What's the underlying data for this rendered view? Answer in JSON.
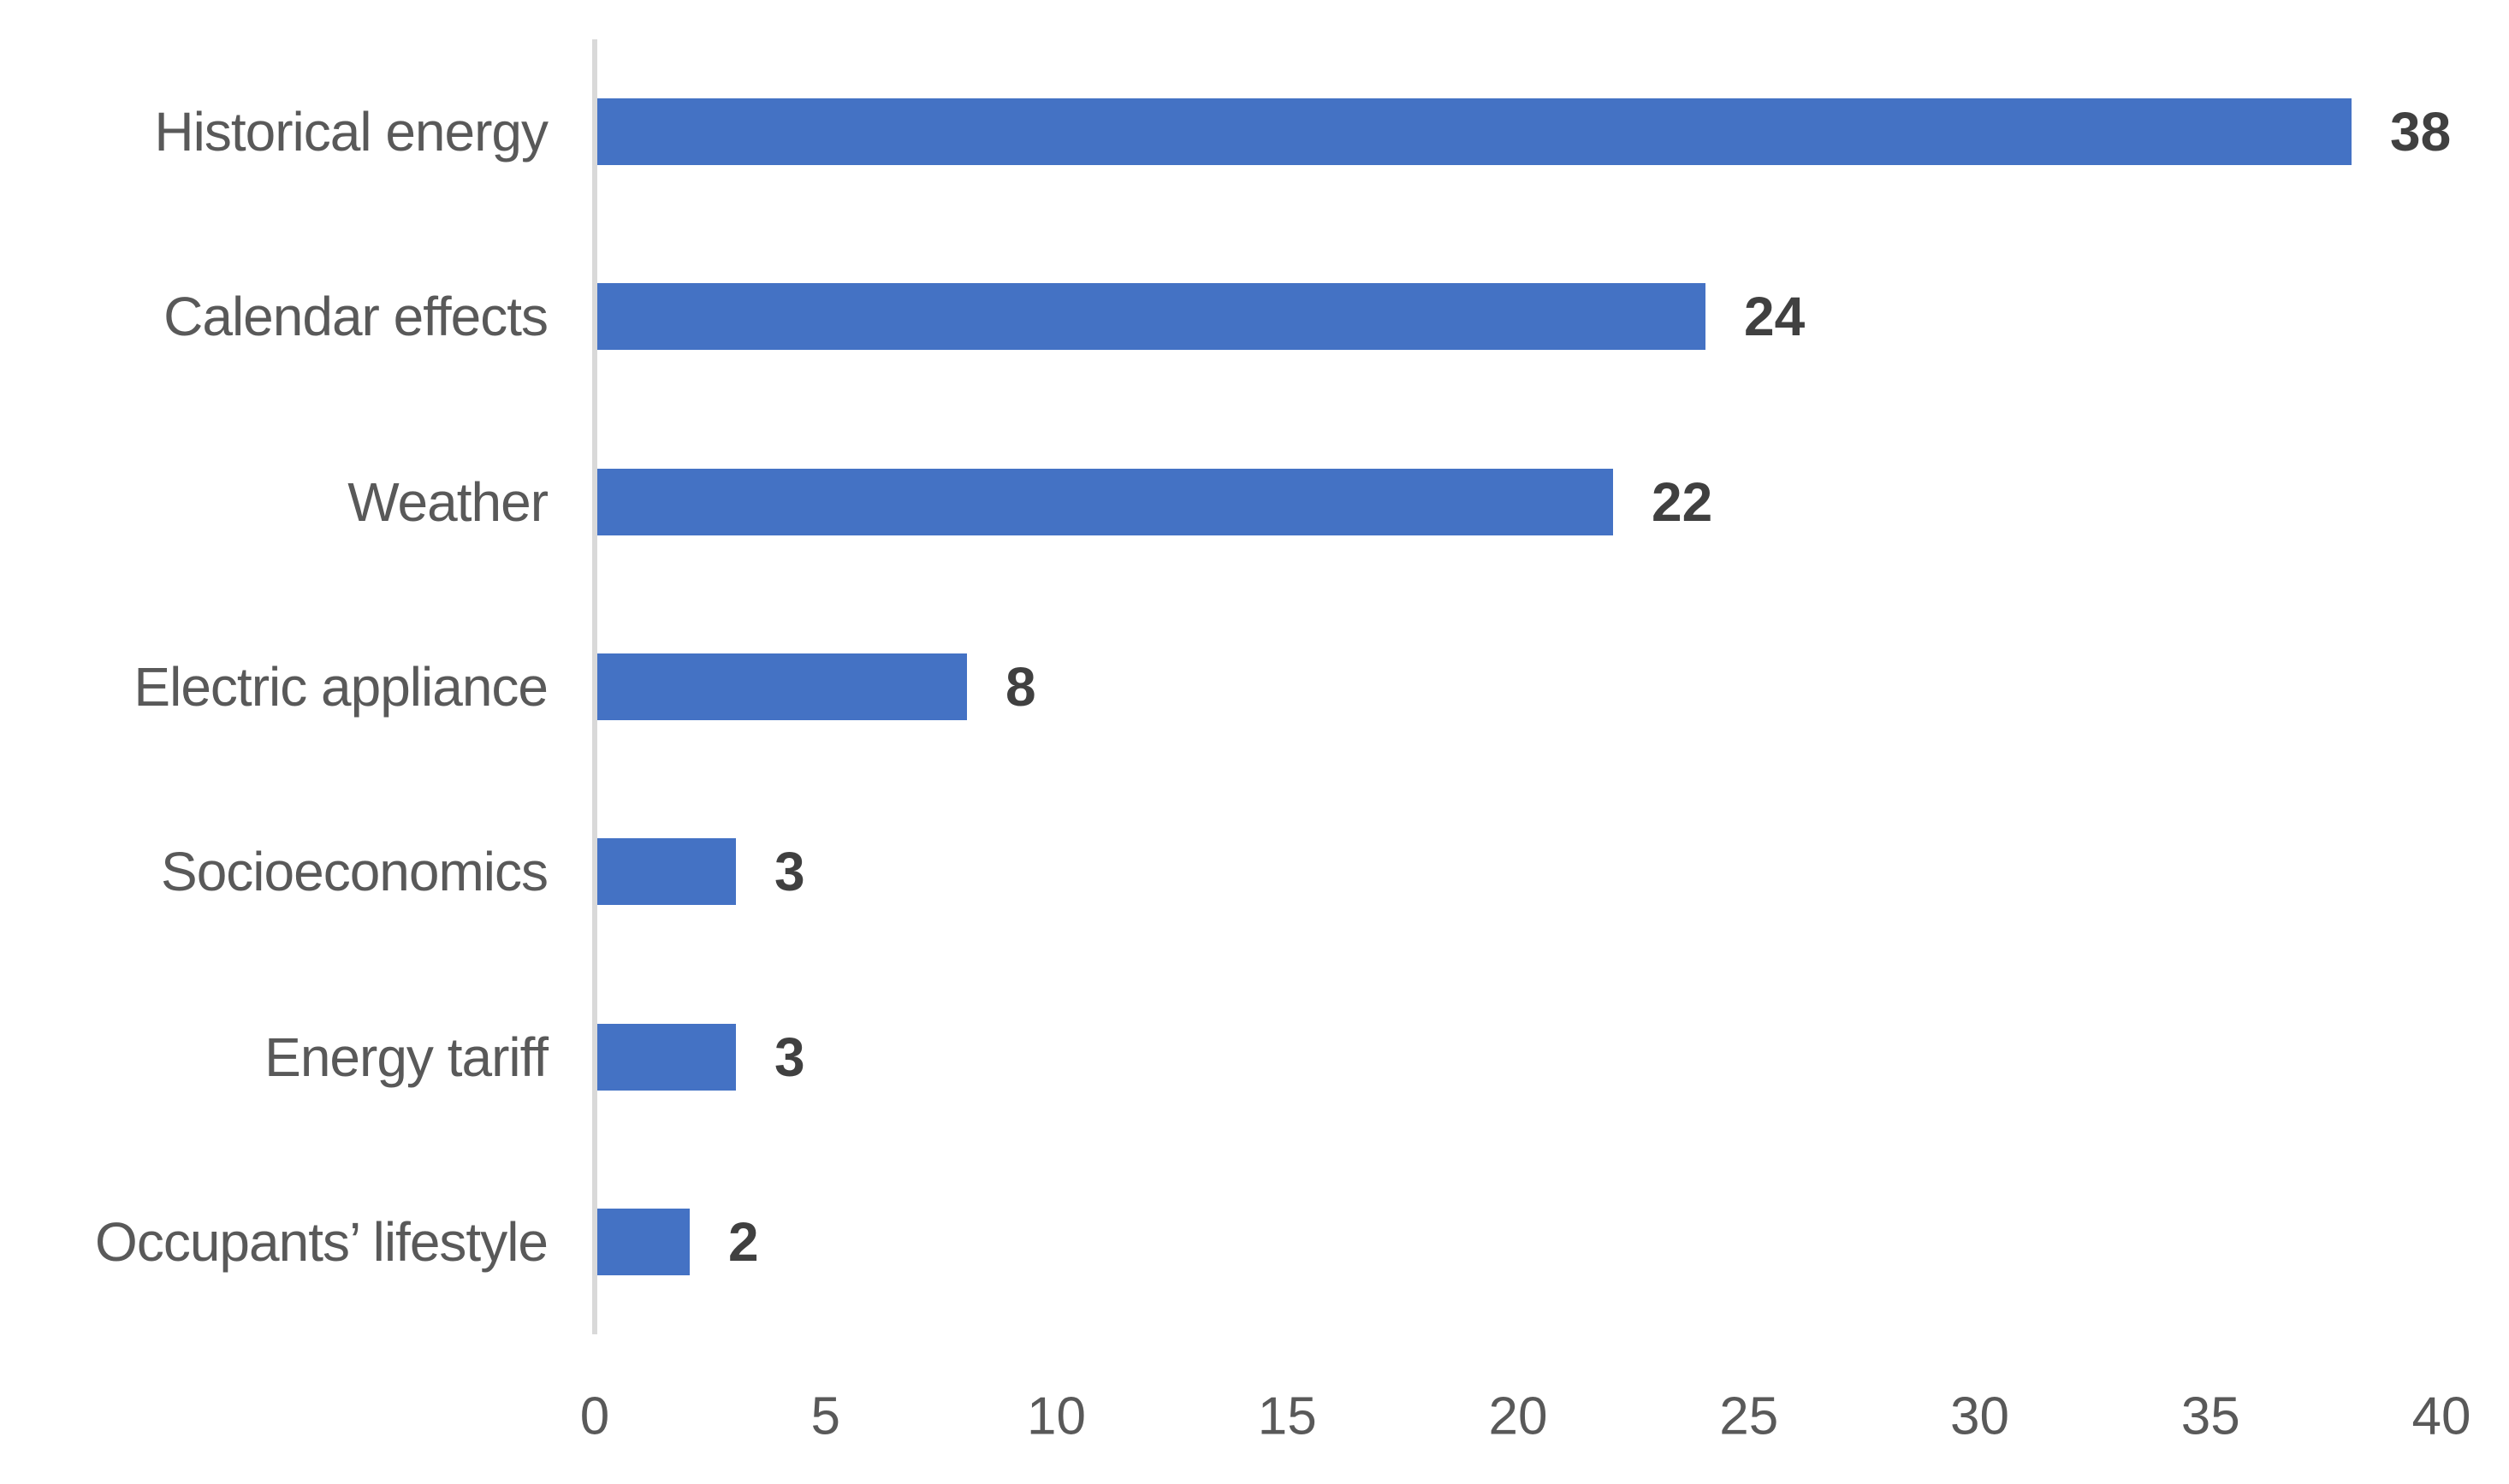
{
  "chart_data": {
    "type": "bar",
    "orientation": "horizontal",
    "title": "",
    "xlabel": "",
    "ylabel": "",
    "categories": [
      "Historical energy",
      "Calendar effects",
      "Weather",
      "Electric appliance",
      "Socioeconomics",
      "Energy tariff",
      "Occupants’ lifestyle"
    ],
    "values": [
      38,
      24,
      22,
      8,
      3,
      3,
      2
    ],
    "data_labels": [
      "38",
      "24",
      "22",
      "8",
      "3",
      "3",
      "2"
    ],
    "xlim": [
      0,
      40
    ],
    "x_ticks": [
      "0",
      "5",
      "10",
      "15",
      "20",
      "25",
      "30",
      "35",
      "40"
    ],
    "x_tick_values": [
      0,
      5,
      10,
      15,
      20,
      25,
      30,
      35,
      40
    ],
    "grid": false,
    "legend": false,
    "colors": {
      "bar": "#4472C4",
      "axis_line": "#D9D9D9",
      "category_text": "#595959",
      "tick_text": "#595959",
      "value_text": "#404040",
      "background": "#FFFFFF"
    }
  }
}
